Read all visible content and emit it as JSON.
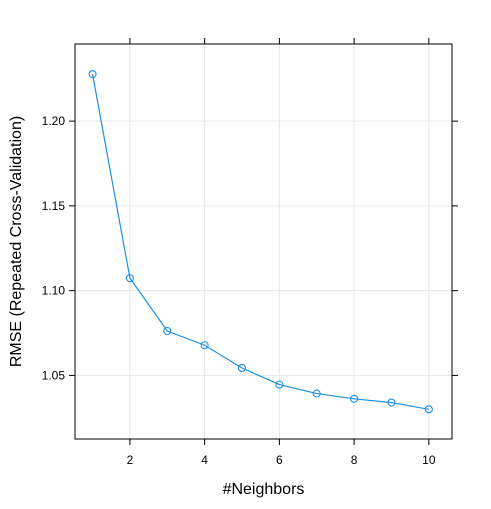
{
  "chart_data": {
    "type": "line",
    "title": "",
    "xlabel": "#Neighbors",
    "ylabel": "RMSE (Repeated Cross-Validation)",
    "xlim": [
      0.53,
      10.62
    ],
    "ylim": [
      1.0125,
      1.2455
    ],
    "x_ticks": [
      2,
      4,
      6,
      8,
      10
    ],
    "y_ticks": [
      1.05,
      1.1,
      1.15,
      1.2
    ],
    "x_tick_labels": [
      "2",
      "4",
      "6",
      "8",
      "10"
    ],
    "y_tick_labels": [
      "1.05",
      "1.10",
      "1.15",
      "1.20"
    ],
    "grid": true,
    "series": [
      {
        "x": [
          1,
          2,
          3,
          4,
          5,
          6,
          7,
          8,
          9,
          10
        ],
        "values": [
          1.2277,
          1.1074,
          1.0762,
          1.0678,
          1.0544,
          1.0446,
          1.0393,
          1.0362,
          1.034,
          1.03
        ],
        "color": "#1f90e0",
        "marker": "open-circle"
      }
    ]
  }
}
